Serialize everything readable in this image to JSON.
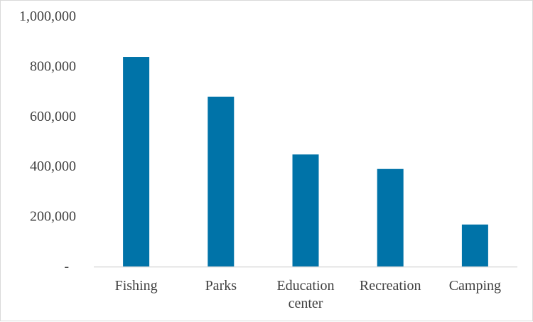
{
  "chart_data": {
    "type": "bar",
    "categories": [
      "Fishing",
      "Parks",
      "Education center",
      "Recreation",
      "Camping"
    ],
    "category_lines": [
      [
        "Fishing"
      ],
      [
        "Parks"
      ],
      [
        "Education",
        "center"
      ],
      [
        "Recreation"
      ],
      [
        "Camping"
      ]
    ],
    "values": [
      838000,
      679000,
      448000,
      390000,
      168000
    ],
    "ylim": [
      0,
      1000000
    ],
    "yticks": [
      0,
      200000,
      400000,
      600000,
      800000,
      1000000
    ],
    "ytick_labels": [
      "-",
      "200,000",
      "400,000",
      "600,000",
      "800,000",
      "1,000,000"
    ],
    "grid": false,
    "legend": "none",
    "bar_color": "#0073a8",
    "axis_color": "#d9d9d9",
    "text_color": "#404040"
  }
}
